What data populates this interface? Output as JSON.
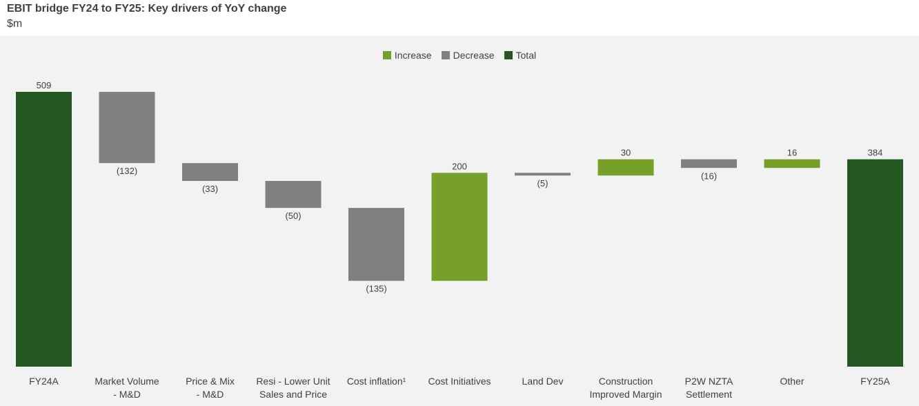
{
  "header": {
    "title": "EBIT bridge FY24 to FY25: Key drivers of YoY change",
    "unit": "$m"
  },
  "colors": {
    "increase": "#76a02a",
    "decrease": "#808080",
    "total": "#235823",
    "background": "#f2f2f2",
    "text": "#404040"
  },
  "legend": [
    {
      "label": "Increase",
      "color": "#76a02a"
    },
    {
      "label": "Decrease",
      "color": "#808080"
    },
    {
      "label": "Total",
      "color": "#235823"
    }
  ],
  "chart_data": {
    "type": "bar",
    "subtype": "waterfall",
    "title": "EBIT bridge FY24 to FY25: Key drivers of YoY change",
    "ylabel": "$m",
    "ylim": [
      0,
      509
    ],
    "grid": false,
    "legend_position": "top-center",
    "categories": [
      [
        "FY24A"
      ],
      [
        "Market Volume",
        "- M&D"
      ],
      [
        "Price & Mix",
        "- M&D"
      ],
      [
        "Resi - Lower Unit",
        "Sales and Price"
      ],
      [
        "Cost inflation¹"
      ],
      [
        "Cost Initiatives"
      ],
      [
        "Land Dev"
      ],
      [
        "Construction",
        "Improved Margin"
      ],
      [
        "P2W NZTA",
        "Settlement"
      ],
      [
        "Other"
      ],
      [
        "FY25A"
      ]
    ],
    "values": [
      509,
      -132,
      -33,
      -50,
      -135,
      200,
      -5,
      30,
      -16,
      16,
      384
    ],
    "kinds": [
      "total",
      "decrease",
      "decrease",
      "decrease",
      "decrease",
      "increase",
      "decrease",
      "increase",
      "decrease",
      "increase",
      "total"
    ],
    "data_labels": [
      "509",
      "(132)",
      "(33)",
      "(50)",
      "(135)",
      "200",
      "(5)",
      "30",
      "(16)",
      "16",
      "384"
    ]
  }
}
